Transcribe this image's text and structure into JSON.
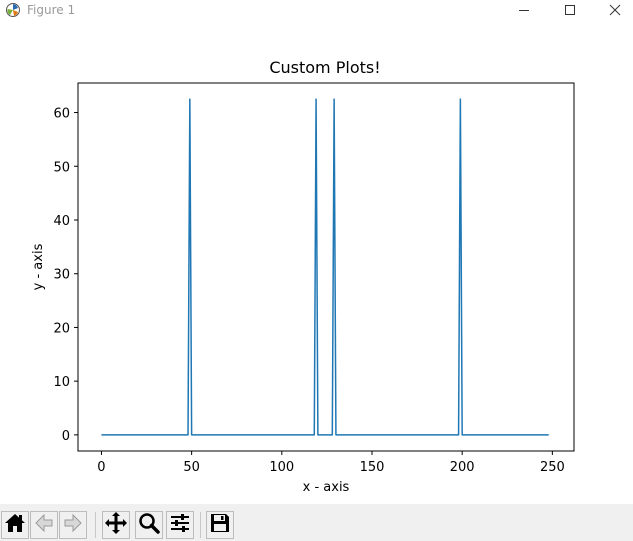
{
  "window": {
    "title": "Figure 1",
    "icons": [
      "matplotlib-logo-icon",
      "minimize-icon",
      "maximize-icon",
      "close-icon"
    ]
  },
  "toolbar": {
    "buttons": [
      {
        "icon": "home-icon"
      },
      {
        "icon": "back-arrow-icon"
      },
      {
        "icon": "forward-arrow-icon"
      },
      {
        "icon": "pan-icon"
      },
      {
        "icon": "zoom-icon"
      },
      {
        "icon": "configure-subplots-icon"
      },
      {
        "icon": "save-icon"
      }
    ]
  },
  "chart_data": {
    "type": "line",
    "title": "Custom Plots!",
    "xlabel": "x - axis",
    "ylabel": "y - axis",
    "xlim": [
      -13,
      262
    ],
    "ylim": [
      -3,
      65.5
    ],
    "xticks": [
      0,
      50,
      100,
      150,
      200,
      250
    ],
    "yticks": [
      0,
      10,
      20,
      30,
      40,
      50,
      60
    ],
    "grid": false,
    "line_color": "#1f77b4",
    "series": [
      {
        "x": [
          0,
          48,
          49,
          50,
          118,
          119,
          120,
          128,
          129,
          130,
          198,
          199,
          200,
          248
        ],
        "y": [
          0,
          0,
          62.5,
          0,
          0,
          62.5,
          0,
          0,
          62.5,
          0,
          0,
          62.5,
          0,
          0
        ]
      }
    ]
  }
}
